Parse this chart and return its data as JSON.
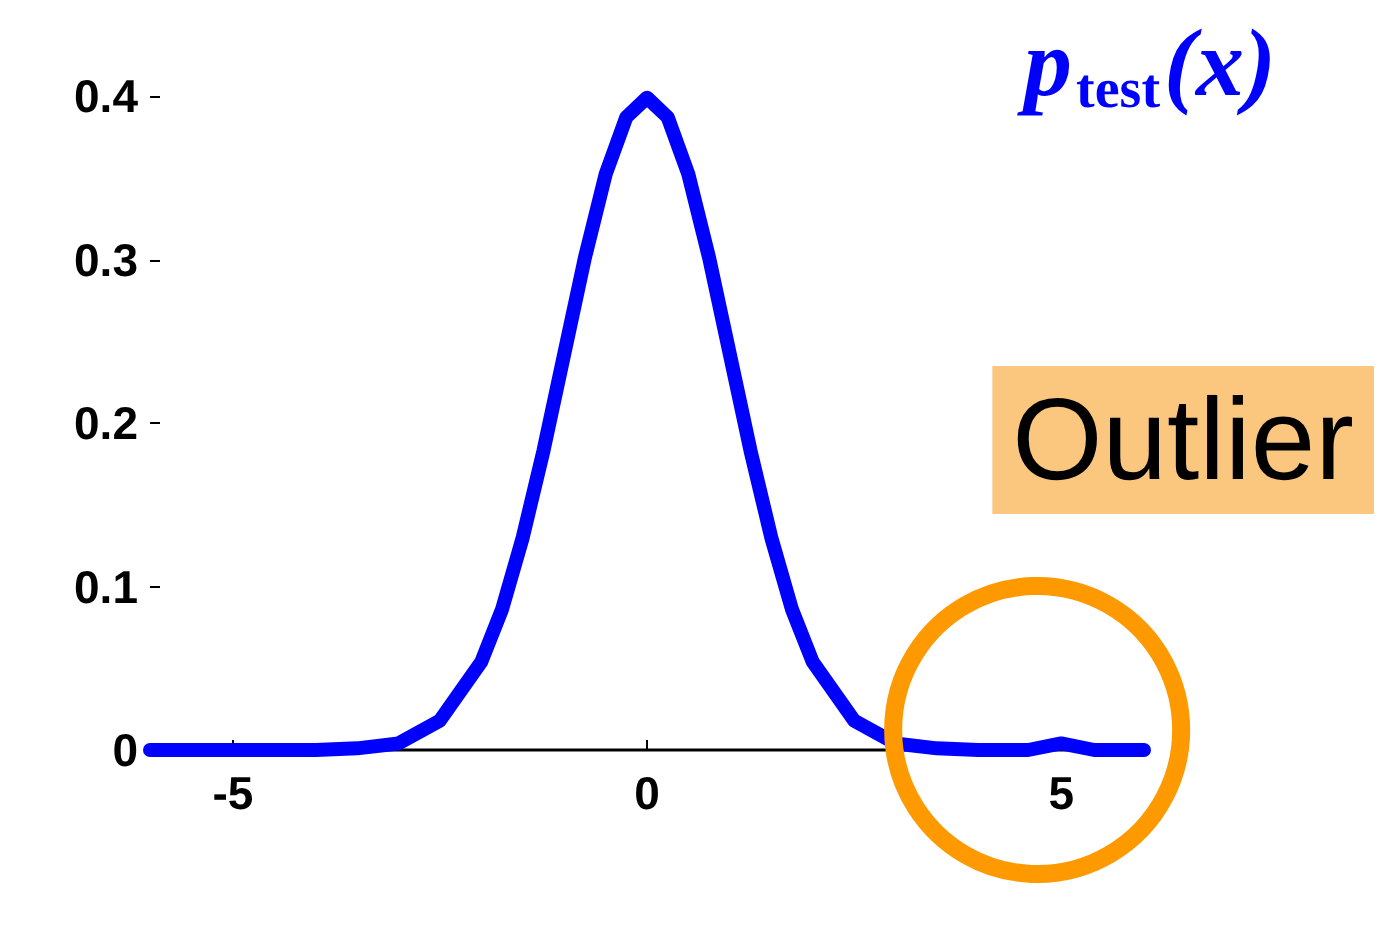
{
  "chart_data": {
    "type": "line",
    "title": "p$_{test}$(x)",
    "x": [
      -6,
      -5,
      -4,
      -3.5,
      -3,
      -2.5,
      -2,
      -1.75,
      -1.5,
      -1.25,
      -1,
      -0.75,
      -0.5,
      -0.25,
      0,
      0.25,
      0.5,
      0.75,
      1,
      1.25,
      1.5,
      1.75,
      2,
      2.5,
      3,
      3.5,
      4,
      4.6,
      5,
      5.4,
      6
    ],
    "series": [
      {
        "color": "#0000ff",
        "values": [
          0,
          0,
          0,
          0.001,
          0.004,
          0.018,
          0.054,
          0.086,
          0.13,
          0.183,
          0.242,
          0.301,
          0.352,
          0.387,
          0.399,
          0.387,
          0.352,
          0.301,
          0.242,
          0.183,
          0.13,
          0.086,
          0.054,
          0.018,
          0.004,
          0.001,
          0,
          0,
          0.004,
          0,
          0
        ]
      }
    ],
    "xlim": [
      -6,
      6
    ],
    "xticks": [
      -5,
      0,
      5
    ],
    "ylim": [
      0,
      0.4
    ],
    "yticks": [
      0,
      0.1,
      0.2,
      0.3,
      0.4
    ],
    "grid": false,
    "line_style": "solid",
    "annotations": [
      {
        "text": "Outlier",
        "x": 5,
        "y": 0
      }
    ]
  }
}
